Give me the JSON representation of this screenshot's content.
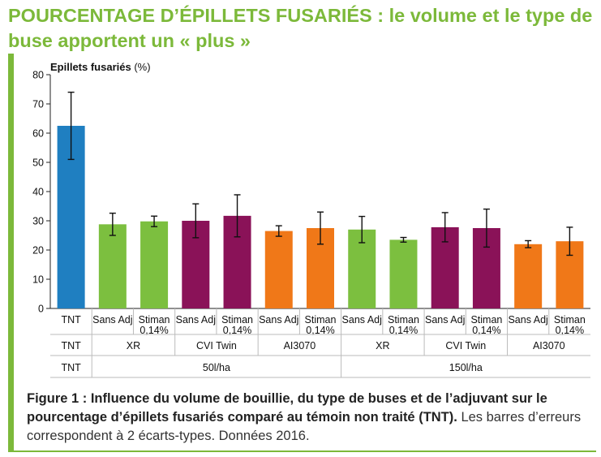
{
  "title": "POURCENTAGE D’ÉPILLETS FUSARIÉS : le volume et le type de buse apportent un « plus »",
  "caption": {
    "bold": "Figure 1 : Influence du volume de bouillie, du type de buses et de l’adjuvant sur le pourcentage d’épillets fusariés comparé au témoin non traité (TNT).",
    "normal": " Les barres d’erreurs correspondent à 2 écarts-types. Données 2016."
  },
  "colors": {
    "accent": "#7cb93a",
    "TNT": "#1f7fc1",
    "XR": "#7cbf3f",
    "CVI Twin": "#8a1258",
    "AI3070": "#f07818"
  },
  "chart_data": {
    "type": "bar",
    "ylabel": "Epillets fusariés",
    "ylabel_unit": "(%)",
    "ylim": [
      0,
      80
    ],
    "yticks": [
      0,
      10,
      20,
      30,
      40,
      50,
      60,
      70,
      80
    ],
    "grid": false,
    "categories": [
      {
        "label": "TNT",
        "label2": "",
        "nozzle": "TNT",
        "volume": "TNT",
        "value": 62.5,
        "err": 11.5
      },
      {
        "label": "Sans Adj",
        "label2": "",
        "nozzle": "XR",
        "volume": "50l/ha",
        "value": 28.8,
        "err": 3.8
      },
      {
        "label": "Stiman",
        "label2": "0,14%",
        "nozzle": "XR",
        "volume": "50l/ha",
        "value": 29.8,
        "err": 1.8
      },
      {
        "label": "Sans Adj",
        "label2": "",
        "nozzle": "CVI Twin",
        "volume": "50l/ha",
        "value": 30.0,
        "err": 5.8
      },
      {
        "label": "Stiman",
        "label2": "0,14%",
        "nozzle": "CVI Twin",
        "volume": "50l/ha",
        "value": 31.7,
        "err": 7.2
      },
      {
        "label": "Sans Adj",
        "label2": "",
        "nozzle": "AI3070",
        "volume": "50l/ha",
        "value": 26.5,
        "err": 1.8
      },
      {
        "label": "Stiman",
        "label2": "0,14%",
        "nozzle": "AI3070",
        "volume": "50l/ha",
        "value": 27.5,
        "err": 5.5
      },
      {
        "label": "Sans Adj",
        "label2": "",
        "nozzle": "XR",
        "volume": "150l/ha",
        "value": 27.0,
        "err": 4.5
      },
      {
        "label": "Stiman",
        "label2": "0,14%",
        "nozzle": "XR",
        "volume": "150l/ha",
        "value": 23.5,
        "err": 0.8
      },
      {
        "label": "Sans Adj",
        "label2": "",
        "nozzle": "CVI Twin",
        "volume": "150l/ha",
        "value": 27.8,
        "err": 5.0
      },
      {
        "label": "Stiman",
        "label2": "0,14%",
        "nozzle": "CVI Twin",
        "volume": "150l/ha",
        "value": 27.5,
        "err": 6.5
      },
      {
        "label": "Sans Adj",
        "label2": "",
        "nozzle": "AI3070",
        "volume": "150l/ha",
        "value": 22.0,
        "err": 1.2
      },
      {
        "label": "Stiman",
        "label2": "0,14%",
        "nozzle": "AI3070",
        "volume": "150l/ha",
        "value": 23.0,
        "err": 4.8
      }
    ],
    "nozzle_groups": [
      {
        "label": "TNT",
        "span": [
          0,
          0
        ]
      },
      {
        "label": "XR",
        "span": [
          1,
          2
        ]
      },
      {
        "label": "CVI Twin",
        "span": [
          3,
          4
        ]
      },
      {
        "label": "AI3070",
        "span": [
          5,
          6
        ]
      },
      {
        "label": "XR",
        "span": [
          7,
          8
        ]
      },
      {
        "label": "CVI Twin",
        "span": [
          9,
          10
        ]
      },
      {
        "label": "AI3070",
        "span": [
          11,
          12
        ]
      }
    ],
    "volume_groups": [
      {
        "label": "TNT",
        "span": [
          0,
          0
        ]
      },
      {
        "label": "50l/ha",
        "span": [
          1,
          6
        ]
      },
      {
        "label": "150l/ha",
        "span": [
          7,
          12
        ]
      }
    ]
  }
}
